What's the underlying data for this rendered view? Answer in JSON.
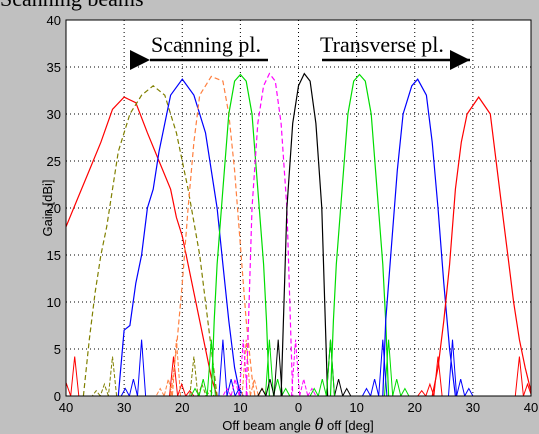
{
  "top_fragment": "Scanning beams",
  "chart_data": {
    "type": "line",
    "title": "",
    "xlabel_pre": "Off beam angle ",
    "xlabel_theta": "θ",
    "xlabel_post": " off [deg]",
    "ylabel": "Gain [dBi]",
    "xlim": [
      -40,
      40
    ],
    "ylim": [
      0,
      40
    ],
    "x_ticks": [
      -40,
      -30,
      -20,
      -10,
      0,
      10,
      20,
      30,
      40
    ],
    "x_tick_labels": [
      "40",
      "30",
      "20",
      "10",
      "0",
      "10",
      "20",
      "30",
      "40"
    ],
    "y_ticks": [
      0,
      5,
      10,
      15,
      20,
      25,
      30,
      35,
      40
    ],
    "y_tick_labels": [
      "0",
      "5",
      "10",
      "15",
      "20",
      "25",
      "30",
      "35",
      "40"
    ],
    "grid": true,
    "annotations": [
      {
        "text": "Scanning pl.",
        "direction": "left"
      },
      {
        "text": "Transverse pl.",
        "direction": "right"
      }
    ],
    "series": [
      {
        "color": "#ff0000",
        "dashed": false,
        "peak_x": -30,
        "peak_y": 31.8,
        "hw": 7.5,
        "points": [
          [
            -40,
            18
          ],
          [
            -38,
            21
          ],
          [
            -36,
            24
          ],
          [
            -34,
            27
          ],
          [
            -32,
            30.5
          ],
          [
            -30,
            31.8
          ],
          [
            -28,
            31.2
          ],
          [
            -26,
            28
          ],
          [
            -24,
            25
          ],
          [
            -22,
            22
          ],
          [
            -21,
            19
          ],
          [
            -20,
            17
          ],
          [
            -19,
            14
          ],
          [
            -18,
            11
          ],
          [
            -17,
            8
          ],
          [
            -16,
            5
          ],
          [
            -15,
            2
          ],
          [
            -14,
            0
          ]
        ]
      },
      {
        "color": "#808000",
        "dashed": true,
        "peak_x": -25,
        "peak_y": 33,
        "hw": 6,
        "points": [
          [
            -37,
            0
          ],
          [
            -36,
            6
          ],
          [
            -35,
            11
          ],
          [
            -34,
            15
          ],
          [
            -33,
            18
          ],
          [
            -32,
            22
          ],
          [
            -31,
            26
          ],
          [
            -29,
            30
          ],
          [
            -27,
            32
          ],
          [
            -25,
            33
          ],
          [
            -23,
            32
          ],
          [
            -21,
            28
          ],
          [
            -19,
            22
          ],
          [
            -17,
            15
          ],
          [
            -16,
            10
          ],
          [
            -15,
            5
          ],
          [
            -14,
            0
          ]
        ]
      },
      {
        "color": "#0000ff",
        "dashed": false,
        "peak_x": -20,
        "peak_y": 33.7,
        "hw": 6,
        "points": [
          [
            -31,
            0
          ],
          [
            -30,
            7
          ],
          [
            -29,
            7.5
          ],
          [
            -28,
            12
          ],
          [
            -27,
            15
          ],
          [
            -26,
            20
          ],
          [
            -25,
            22
          ],
          [
            -24,
            26
          ],
          [
            -23,
            29
          ],
          [
            -22,
            32
          ],
          [
            -20,
            33.7
          ],
          [
            -18,
            32
          ],
          [
            -16,
            28
          ],
          [
            -14,
            20
          ],
          [
            -13,
            14
          ],
          [
            -12,
            8
          ],
          [
            -11,
            3
          ],
          [
            -10,
            0
          ]
        ]
      },
      {
        "color": "#ff8040",
        "dashed": true,
        "peak_x": -15,
        "peak_y": 34,
        "hw": 5,
        "points": [
          [
            -22,
            0
          ],
          [
            -21,
            5
          ],
          [
            -20,
            12
          ],
          [
            -19,
            20
          ],
          [
            -18,
            27
          ],
          [
            -17,
            32
          ],
          [
            -15,
            34
          ],
          [
            -13,
            33.5
          ],
          [
            -12,
            30
          ],
          [
            -11,
            24
          ],
          [
            -10,
            16
          ],
          [
            -9,
            8
          ],
          [
            -8,
            2
          ],
          [
            -7.5,
            0
          ]
        ]
      },
      {
        "color": "#00dd00",
        "dashed": false,
        "peak_x": -10,
        "peak_y": 34.2,
        "hw": 4,
        "points": [
          [
            -15,
            0
          ],
          [
            -14.5,
            8
          ],
          [
            -14,
            14
          ],
          [
            -13,
            22
          ],
          [
            -12,
            30
          ],
          [
            -11,
            33.5
          ],
          [
            -10,
            34.2
          ],
          [
            -9,
            33.5
          ],
          [
            -8,
            30
          ],
          [
            -7,
            22
          ],
          [
            -6,
            14
          ],
          [
            -5.5,
            8
          ],
          [
            -5,
            0
          ]
        ]
      },
      {
        "color": "#ff00ff",
        "dashed": true,
        "peak_x": -5,
        "peak_y": 34.3,
        "hw": 3.5,
        "points": [
          [
            -9,
            0
          ],
          [
            -8.5,
            10
          ],
          [
            -8,
            20
          ],
          [
            -7,
            29
          ],
          [
            -6,
            33
          ],
          [
            -5,
            34.3
          ],
          [
            -4,
            33.5
          ],
          [
            -3,
            29
          ],
          [
            -2,
            20
          ],
          [
            -1.5,
            10
          ],
          [
            -1,
            0
          ]
        ]
      },
      {
        "color": "#000000",
        "dashed": false,
        "peak_x": 1,
        "peak_y": 34.3,
        "hw": 3.5,
        "points": [
          [
            -3,
            0
          ],
          [
            -2.5,
            10
          ],
          [
            -2,
            20
          ],
          [
            -1,
            29
          ],
          [
            0,
            33
          ],
          [
            1,
            34.3
          ],
          [
            2,
            33.5
          ],
          [
            3,
            29
          ],
          [
            4,
            20
          ],
          [
            4.5,
            10
          ],
          [
            5,
            0
          ]
        ]
      },
      {
        "color": "#00dd00",
        "dashed": false,
        "peak_x": 10.5,
        "peak_y": 34.2,
        "hw": 4,
        "points": [
          [
            5.5,
            0
          ],
          [
            6,
            8
          ],
          [
            6.5,
            14
          ],
          [
            7.5,
            22
          ],
          [
            8.5,
            30
          ],
          [
            9.5,
            33.5
          ],
          [
            10.5,
            34.2
          ],
          [
            11.5,
            33.5
          ],
          [
            12.5,
            30
          ],
          [
            13.5,
            22
          ],
          [
            14.5,
            14
          ],
          [
            15,
            8
          ],
          [
            15.5,
            0
          ]
        ]
      },
      {
        "color": "#0000ff",
        "dashed": false,
        "peak_x": 20.5,
        "peak_y": 33.7,
        "hw": 5,
        "points": [
          [
            14.5,
            0
          ],
          [
            15,
            8
          ],
          [
            16,
            16
          ],
          [
            17,
            24
          ],
          [
            18,
            30
          ],
          [
            19.5,
            33
          ],
          [
            20.5,
            33.7
          ],
          [
            22,
            32
          ],
          [
            23,
            27
          ],
          [
            24,
            20
          ],
          [
            25,
            12
          ],
          [
            26,
            5
          ],
          [
            27,
            0
          ]
        ]
      },
      {
        "color": "#ff0000",
        "dashed": false,
        "peak_x": 31,
        "peak_y": 31.8,
        "hw": 6,
        "points": [
          [
            23,
            0
          ],
          [
            24,
            3
          ],
          [
            25,
            8
          ],
          [
            26,
            14
          ],
          [
            27,
            22
          ],
          [
            28,
            27
          ],
          [
            29,
            30
          ],
          [
            31,
            31.8
          ],
          [
            33,
            30
          ],
          [
            34,
            25
          ],
          [
            35,
            20
          ],
          [
            36,
            15
          ],
          [
            37,
            10
          ],
          [
            38,
            6
          ],
          [
            39,
            3
          ],
          [
            40,
            0.5
          ]
        ]
      }
    ]
  }
}
